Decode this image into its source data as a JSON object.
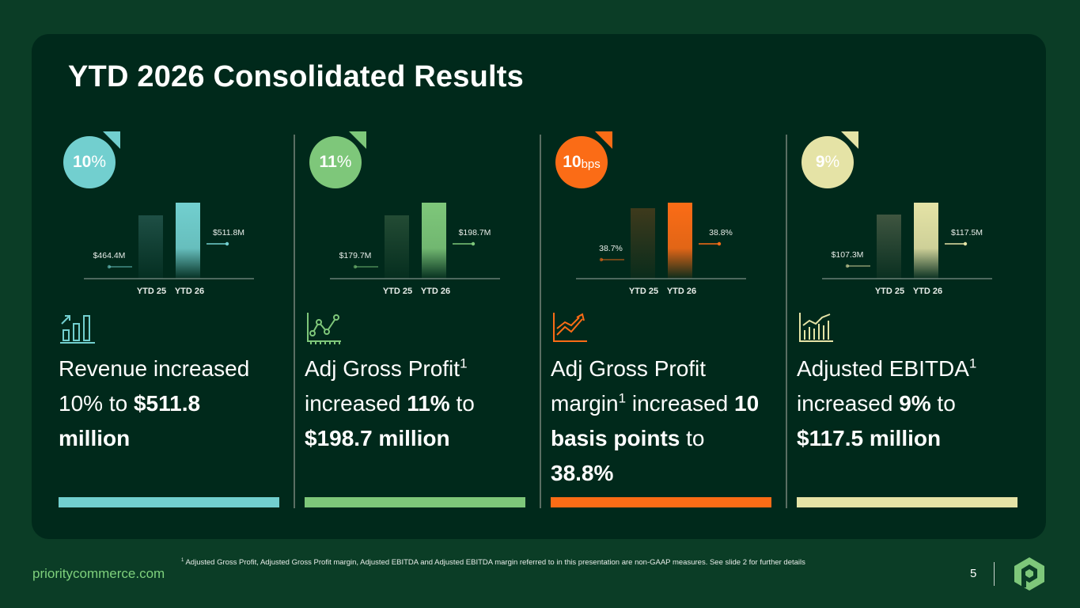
{
  "title": "YTD 2026 Consolidated Results",
  "colors": {
    "background": "#0b3d26",
    "panel": "#00291b",
    "teal": "#72cfcf",
    "green": "#7ec77a",
    "orange": "#fb6c16",
    "cream": "#e5e3a6"
  },
  "cards": [
    {
      "badge": {
        "value": "10",
        "unit": "%"
      },
      "color": "#72cfcf",
      "dark_color": "#1e4f45",
      "icon": "bar-growth-icon",
      "desc_parts": [
        {
          "text": "Revenue increased ",
          "bold": false
        },
        {
          "text": "10%",
          "bold": false
        },
        {
          "text": " to ",
          "bold": false
        },
        {
          "text": "$511.8 million",
          "bold": true
        }
      ]
    },
    {
      "badge": {
        "value": "11",
        "unit": "%"
      },
      "color": "#7ec77a",
      "dark_color": "#234b34",
      "icon": "line-chart-icon",
      "desc_parts": [
        {
          "text": "Adj Gross Profit",
          "bold": false
        },
        {
          "text": "1",
          "sup": true
        },
        {
          "text": " increased ",
          "bold": false
        },
        {
          "text": "11%",
          "bold": true
        },
        {
          "text": " to ",
          "bold": false
        },
        {
          "text": "$198.7 million",
          "bold": true
        }
      ]
    },
    {
      "badge": {
        "value": "10",
        "unit": "bps"
      },
      "color": "#fb6c16",
      "dark_color": "#3e3a1c",
      "icon": "trend-up-icon",
      "desc_parts": [
        {
          "text": "Adj Gross Profit margin",
          "bold": false
        },
        {
          "text": "1",
          "sup": true
        },
        {
          "text": " increased ",
          "bold": false
        },
        {
          "text": "10 basis points",
          "bold": true
        },
        {
          "text": " to ",
          "bold": false
        },
        {
          "text": "38.8%",
          "bold": true
        }
      ]
    },
    {
      "badge": {
        "value": "9",
        "unit": "%"
      },
      "color": "#e5e3a6",
      "dark_color": "#3f5540",
      "icon": "bar-line-icon",
      "desc_parts": [
        {
          "text": "Adjusted EBITDA",
          "bold": false
        },
        {
          "text": "1",
          "sup": true
        },
        {
          "text": " increased ",
          "bold": false
        },
        {
          "text": "9%",
          "bold": true
        },
        {
          "text": " to ",
          "bold": false
        },
        {
          "text": "$117.5 million",
          "bold": true
        }
      ]
    }
  ],
  "chart_data": [
    {
      "type": "bar",
      "categories": [
        "YTD 25",
        "YTD 26"
      ],
      "values": [
        464.4,
        511.8
      ],
      "labels": [
        "$464.4M",
        "$511.8M"
      ]
    },
    {
      "type": "bar",
      "categories": [
        "YTD 25",
        "YTD 26"
      ],
      "values": [
        179.7,
        198.7
      ],
      "labels": [
        "$179.7M",
        "$198.7M"
      ]
    },
    {
      "type": "bar",
      "categories": [
        "YTD 25",
        "YTD 26"
      ],
      "values": [
        38.7,
        38.8
      ],
      "labels": [
        "38.7%",
        "38.8%"
      ]
    },
    {
      "type": "bar",
      "categories": [
        "YTD 25",
        "YTD 26"
      ],
      "values": [
        107.3,
        117.5
      ],
      "labels": [
        "$107.3M",
        "$117.5M"
      ]
    }
  ],
  "footnote": {
    "marker": "1",
    "text": " Adjusted Gross Profit, Adjusted Gross Profit margin, Adjusted EBITDA and Adjusted EBITDA margin referred to in this presentation are non-GAAP measures. See slide 2 for further details"
  },
  "footer": {
    "website": "prioritycommerce.com",
    "page_number": "5"
  },
  "logo": "priority-logo-icon"
}
